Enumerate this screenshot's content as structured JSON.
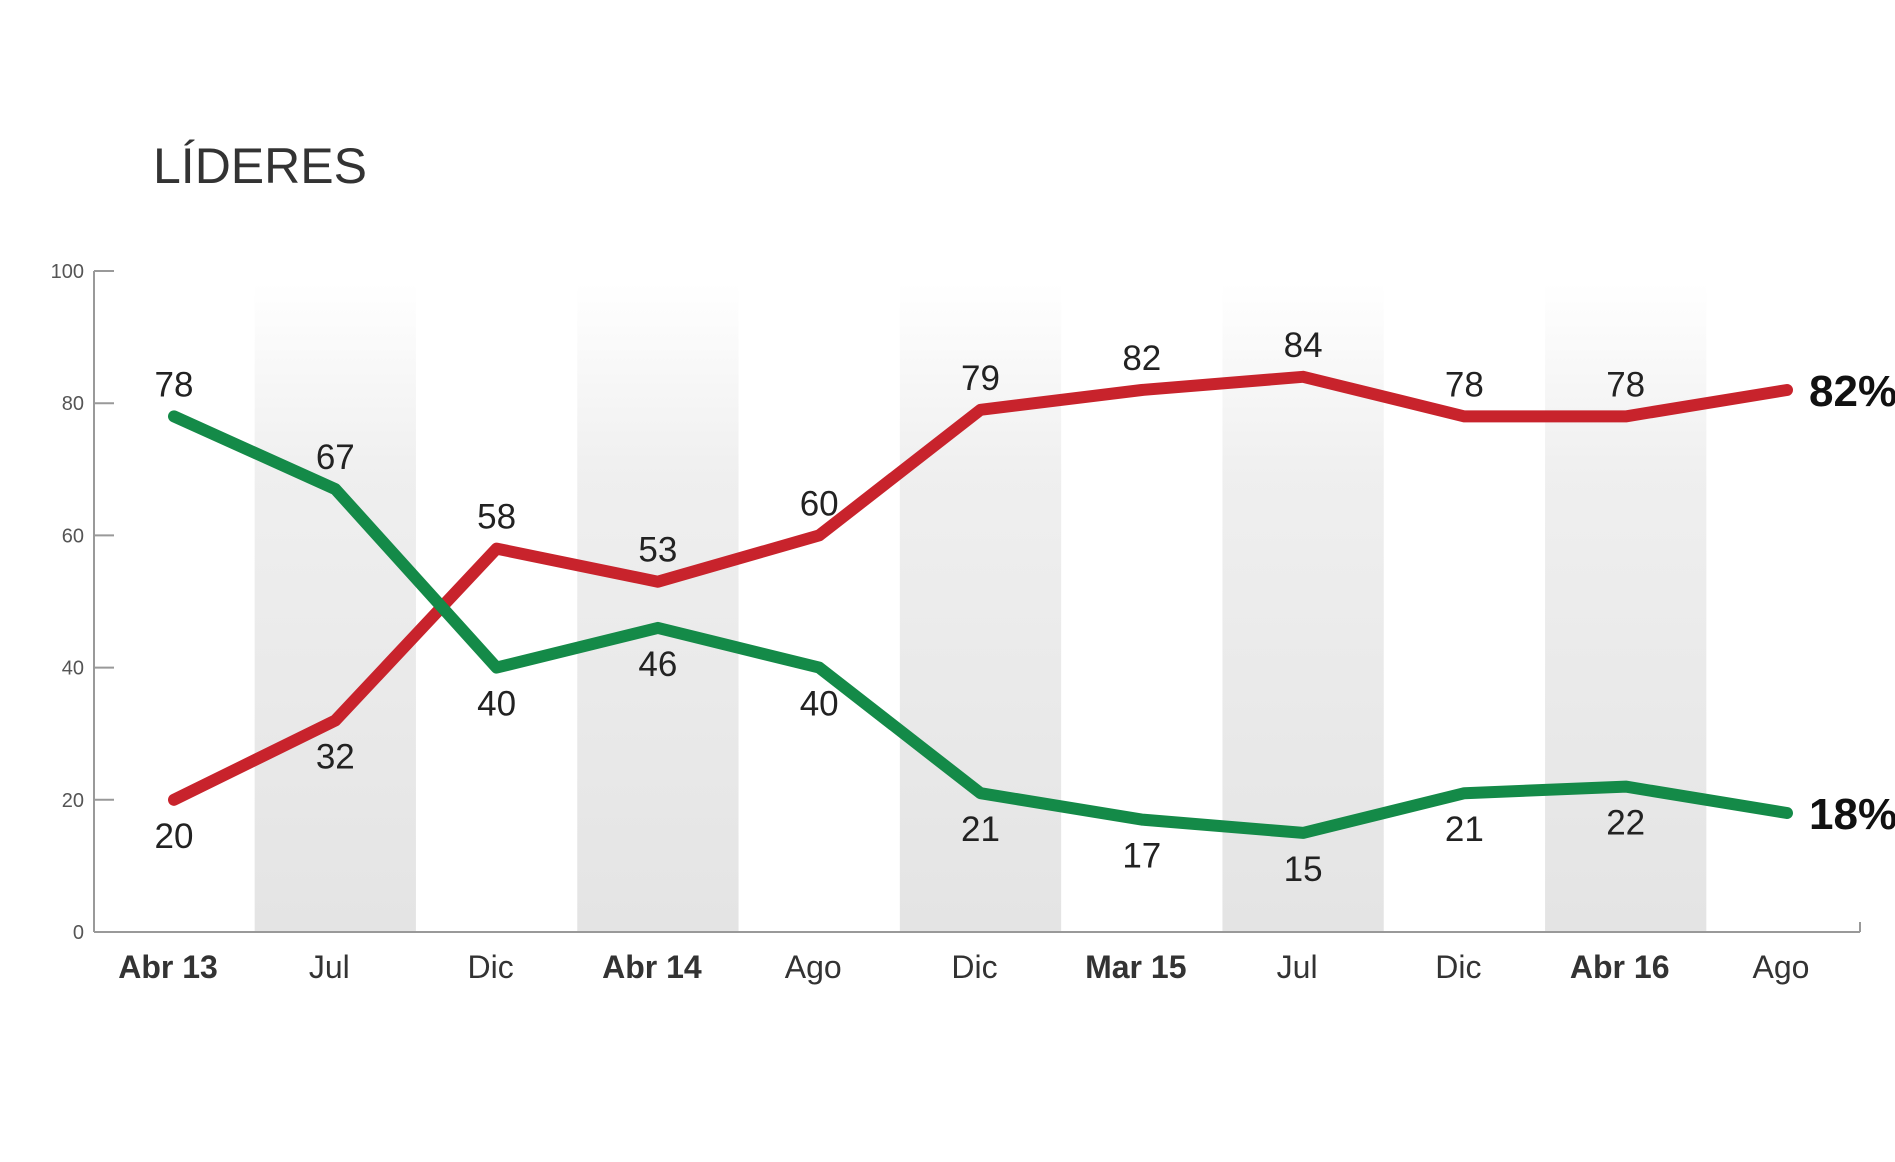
{
  "chart_data": {
    "type": "line",
    "title": "LÍDERES",
    "categories": [
      "Abr 13",
      "Jul",
      "Dic",
      "Abr 14",
      "Ago",
      "Dic",
      "Mar 15",
      "Jul",
      "Dic",
      "Abr 16",
      "Ago"
    ],
    "bold_categories": [
      "Abr 13",
      "Abr 14",
      "Mar 15",
      "Abr 16"
    ],
    "ylim": [
      0,
      100
    ],
    "yticks": [
      "0",
      "20",
      "40",
      "60",
      "80",
      "100"
    ],
    "grid": false,
    "shaded_columns": [
      1,
      3,
      5,
      7,
      9
    ],
    "series": [
      {
        "color": "#c8232c",
        "values": [
          20,
          32,
          58,
          53,
          60,
          79,
          82,
          84,
          78,
          78,
          82
        ],
        "labels": [
          "20",
          "32",
          "58",
          "53",
          "60",
          "79",
          "82",
          "84",
          "78",
          "78",
          ""
        ],
        "end_label": "82%"
      },
      {
        "color": "#148a48",
        "values": [
          78,
          67,
          40,
          46,
          40,
          21,
          17,
          15,
          21,
          22,
          18
        ],
        "labels": [
          "78",
          "67",
          "40",
          "46",
          "40",
          "21",
          "17",
          "15",
          "21",
          "22",
          ""
        ],
        "end_label": "18%"
      }
    ]
  }
}
